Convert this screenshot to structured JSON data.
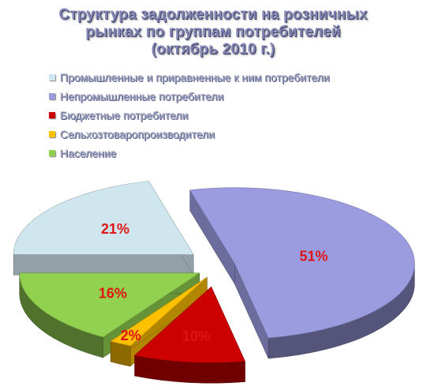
{
  "title": {
    "lines": [
      "Структура задолженности на розничных",
      "рынках по группам потребителей",
      "(октябрь 2010 г.)"
    ]
  },
  "chart_data": {
    "type": "pie",
    "title": "Структура задолженности на розничных рынках по группам потребителей (октябрь 2010 г.)",
    "legend_position": "top",
    "exploded": true,
    "three_d": true,
    "categories": [
      "Промышленные и приравненные к ним потребители",
      "Непромышленные потребители",
      "Бюджетные потребители",
      "Сельхозтоваропроизводители",
      "Население"
    ],
    "values": [
      21,
      51,
      10,
      2,
      16
    ],
    "labels": [
      "21%",
      "51%",
      "10%",
      "2%",
      "16%"
    ],
    "colors": [
      "#cfe6ee",
      "#9b9be0",
      "#cc0000",
      "#ffc000",
      "#92d050"
    ]
  }
}
